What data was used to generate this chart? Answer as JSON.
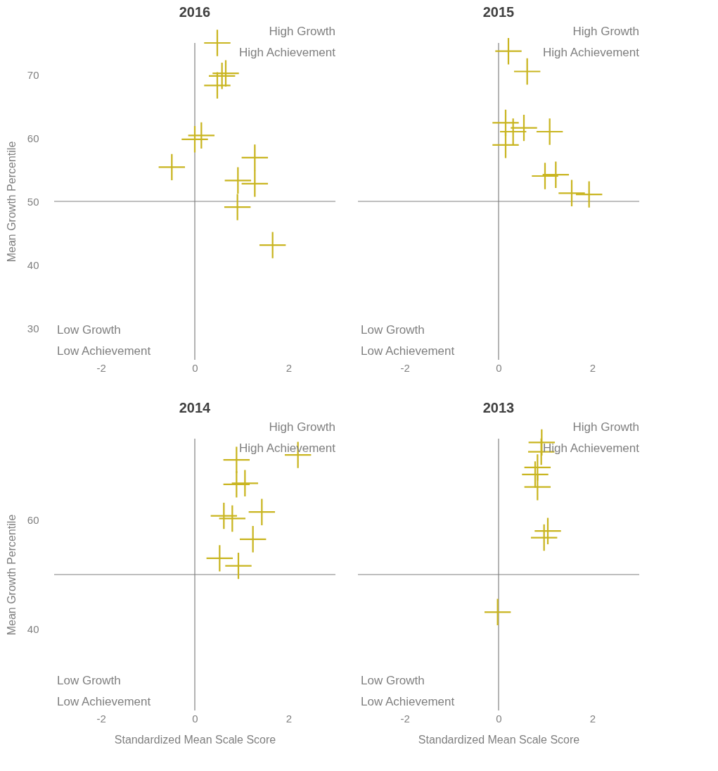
{
  "chart_data": [
    {
      "type": "scatter",
      "title": "2016",
      "ylabel": "Mean Growth Percentile",
      "xlim": [
        -3,
        3
      ],
      "xticks": [
        -2,
        0,
        2
      ],
      "ylim": [
        25,
        75
      ],
      "yticks": [
        30,
        40,
        50,
        60,
        70
      ],
      "marker": "cross",
      "color": "#c9b520",
      "x": [
        0.48,
        0.58,
        0.66,
        0.48,
        0.14,
        0.0,
        -0.49,
        1.28,
        0.92,
        1.28,
        0.91,
        1.66
      ],
      "values": [
        75.0,
        69.8,
        70.2,
        68.3,
        60.4,
        59.8,
        55.4,
        56.9,
        53.3,
        52.8,
        49.1,
        43.1
      ],
      "ref_lines": [
        {
          "axis": "x",
          "value": 0,
          "label": null,
          "color": "#808080"
        },
        {
          "axis": "y",
          "value": 50,
          "label": null,
          "color": "#808080"
        }
      ],
      "annotations": [
        "High Growth\nHigh Achievement",
        "Low Growth\nLow Achievement"
      ]
    },
    {
      "type": "scatter",
      "title": "2015",
      "xlim": [
        -3,
        3
      ],
      "xticks": [
        -2,
        0,
        2
      ],
      "ylim": [
        25,
        75
      ],
      "tick_labels": "x",
      "marker": "cross",
      "color": "#c9b520",
      "x": [
        0.21,
        0.61,
        0.15,
        0.15,
        0.31,
        0.54,
        1.09,
        0.99,
        1.22,
        1.56,
        1.93
      ],
      "values": [
        73.7,
        70.5,
        62.4,
        58.9,
        61.0,
        61.6,
        61.0,
        54.0,
        54.2,
        51.3,
        51.1
      ],
      "ref_lines": [
        {
          "axis": "x",
          "value": 0,
          "label": null,
          "color": "#808080"
        },
        {
          "axis": "y",
          "value": 50,
          "label": null,
          "color": "#808080"
        }
      ],
      "annotations": [
        "High Growth\nHigh Achievement",
        "Low Growth\nLow Achievement"
      ]
    },
    {
      "type": "scatter",
      "title": "2014",
      "xlabel": "Standardized Mean Scale Score",
      "ylabel": "Mean Growth Percentile",
      "xlim": [
        -3,
        3
      ],
      "xticks": [
        -2,
        0,
        2
      ],
      "ylim": [
        25,
        75
      ],
      "yticks": [
        40,
        60
      ],
      "marker": "cross",
      "color": "#c9b520",
      "x": [
        2.2,
        0.89,
        0.89,
        1.07,
        0.62,
        0.8,
        1.43,
        1.24,
        0.53,
        0.93
      ],
      "values": [
        72.0,
        71.1,
        66.6,
        66.8,
        60.8,
        60.3,
        61.5,
        56.5,
        53.0,
        51.6
      ],
      "ref_lines": [
        {
          "axis": "x",
          "value": 0,
          "label": null,
          "color": "#808080"
        },
        {
          "axis": "y",
          "value": 50,
          "label": null,
          "color": "#808080"
        }
      ],
      "annotations": [
        "High Growth\nHigh Achievement",
        "Low Growth\nLow Achievement"
      ]
    },
    {
      "type": "scatter",
      "title": "2013",
      "xlabel": "Standardized Mean Scale Score",
      "xlim": [
        -3,
        3
      ],
      "xticks": [
        -2,
        0,
        2
      ],
      "ylim": [
        25,
        75
      ],
      "tick_labels": "x",
      "marker": "cross",
      "color": "#c9b520",
      "x": [
        0.92,
        0.91,
        0.83,
        0.78,
        0.83,
        1.05,
        0.97,
        -0.02
      ],
      "values": [
        74.3,
        72.6,
        69.7,
        68.4,
        66.1,
        58.0,
        56.8,
        43.1
      ],
      "ref_lines": [
        {
          "axis": "x",
          "value": 0,
          "label": null,
          "color": "#808080"
        },
        {
          "axis": "y",
          "value": 50,
          "label": null,
          "color": "#808080"
        }
      ],
      "annotations": [
        "High Growth\nHigh Achievement",
        "Low Growth\nLow Achievement"
      ]
    }
  ]
}
